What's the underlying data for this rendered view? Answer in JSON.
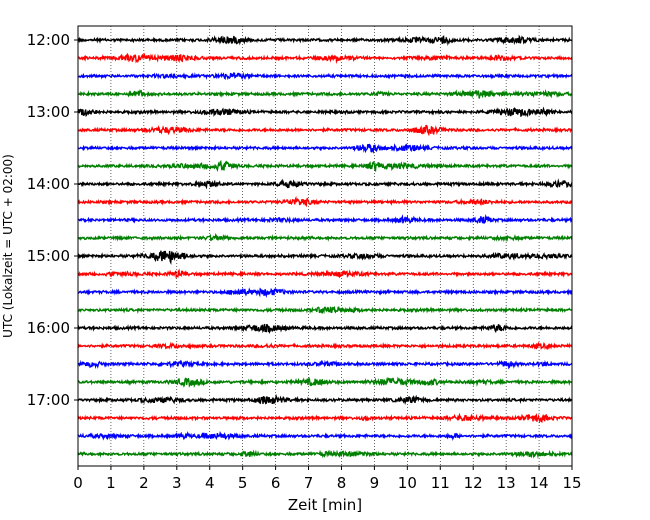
{
  "chart_data": {
    "type": "line",
    "title": "",
    "xlabel": "Zeit  [min]",
    "ylabel": "UTC (Lokalzeit = UTC + 02:00)",
    "xlim": [
      0,
      15
    ],
    "x_ticks": [
      0,
      1,
      2,
      3,
      4,
      5,
      6,
      7,
      8,
      9,
      10,
      11,
      12,
      13,
      14,
      15
    ],
    "y_ticks": [
      "12:00",
      "13:00",
      "14:00",
      "15:00",
      "16:00",
      "17:00"
    ],
    "grid": "vertical dotted",
    "trace_interval_min": 15,
    "trace_count": 24,
    "colors": [
      "#000000",
      "#ff0000",
      "#0000ff",
      "#008000"
    ]
  }
}
